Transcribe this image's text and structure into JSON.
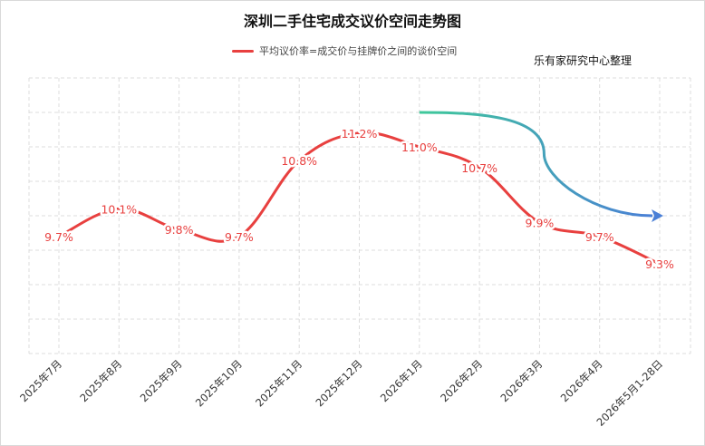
{
  "chart_data": {
    "type": "line",
    "title": "深圳二手住宅成交议价空间走势图",
    "credit": "乐有家研究中心整理",
    "legend_position": "top-center",
    "grid": true,
    "categories": [
      "2025年7月",
      "2025年8月",
      "2025年9月",
      "2025年10月",
      "2025年11月",
      "2025年12月",
      "2026年1月",
      "2026年2月",
      "2026年3月",
      "2026年4月",
      "2026年5月1-28日"
    ],
    "series": [
      {
        "name": "平均议价率=成交价与挂牌价之间的谈价空间",
        "color": "#e8403f",
        "values": [
          9.7,
          10.1,
          9.8,
          9.7,
          10.8,
          11.2,
          11.0,
          10.7,
          9.9,
          9.7,
          9.3
        ],
        "labels": [
          "9.7%",
          "10.1%",
          "9.8%",
          "9.7%",
          "10.8%",
          "11.2%",
          "11.0%",
          "10.7%",
          "9.9%",
          "9.7%",
          "9.3%"
        ]
      }
    ],
    "ylim": [
      8.0,
      12.0
    ],
    "annotation_arrow": {
      "from": "2026年1月",
      "to": "2026年5月1-28日",
      "colors": [
        "#3fc99a",
        "#4a7fd6"
      ]
    }
  }
}
